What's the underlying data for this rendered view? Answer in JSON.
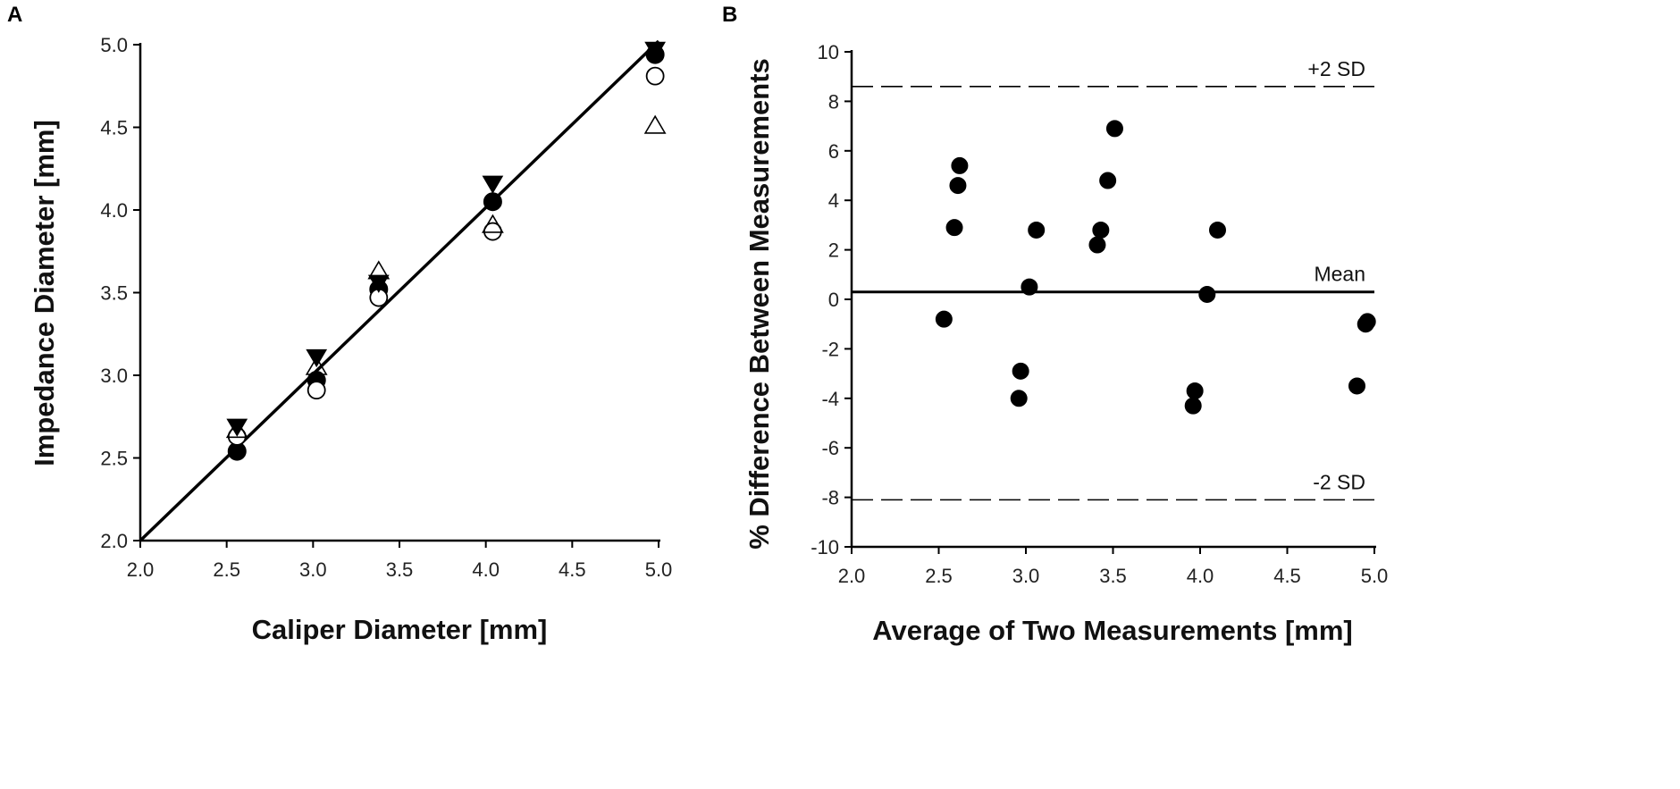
{
  "chart_data": [
    {
      "panel": "A",
      "type": "scatter",
      "xlabel": "Caliper Diameter [mm]",
      "ylabel": "Impedance Diameter [mm]",
      "xlim": [
        2.0,
        5.0
      ],
      "ylim": [
        2.0,
        5.0
      ],
      "xticks": [
        "2.0",
        "2.5",
        "3.0",
        "3.5",
        "4.0",
        "4.5",
        "5.0"
      ],
      "yticks": [
        "2.0",
        "2.5",
        "3.0",
        "3.5",
        "4.0",
        "4.5",
        "5.0"
      ],
      "grid": false,
      "identity_line": {
        "x": [
          2.0,
          5.0
        ],
        "y": [
          2.0,
          5.0
        ]
      },
      "series": [
        {
          "name": "filled circle",
          "marker": "circle-filled",
          "points": [
            [
              2.56,
              2.54
            ],
            [
              3.02,
              2.97
            ],
            [
              3.38,
              3.52
            ],
            [
              4.04,
              4.05
            ],
            [
              4.98,
              4.94
            ]
          ]
        },
        {
          "name": "open circle",
          "marker": "circle-open",
          "points": [
            [
              2.56,
              2.63
            ],
            [
              3.02,
              2.91
            ],
            [
              3.38,
              3.47
            ],
            [
              4.04,
              3.87
            ],
            [
              4.98,
              4.81
            ]
          ]
        },
        {
          "name": "filled triangle down",
          "marker": "triangle-down-filled",
          "points": [
            [
              2.56,
              2.69
            ],
            [
              3.02,
              3.11
            ],
            [
              3.38,
              3.56
            ],
            [
              4.04,
              4.16
            ],
            [
              4.98,
              4.97
            ]
          ]
        },
        {
          "name": "open triangle up",
          "marker": "triangle-up-open",
          "points": [
            [
              2.56,
              2.67
            ],
            [
              3.02,
              3.05
            ],
            [
              3.38,
              3.63
            ],
            [
              4.04,
              3.91
            ],
            [
              4.98,
              4.51
            ]
          ]
        }
      ]
    },
    {
      "panel": "B",
      "type": "scatter",
      "xlabel": "Average of Two Measurements [mm]",
      "ylabel": "% Difference Between Measurements",
      "xlim": [
        2.0,
        5.0
      ],
      "ylim": [
        -10,
        10
      ],
      "xticks": [
        "2.0",
        "2.5",
        "3.0",
        "3.5",
        "4.0",
        "4.5",
        "5.0"
      ],
      "yticks": [
        "-10",
        "-8",
        "-6",
        "-4",
        "-2",
        "0",
        "2",
        "4",
        "6",
        "8",
        "10"
      ],
      "grid": false,
      "reference_lines": [
        {
          "label": "+2 SD",
          "value": 8.6,
          "style": "dashed"
        },
        {
          "label": "Mean",
          "value": 0.3,
          "style": "solid"
        },
        {
          "label": "-2 SD",
          "value": -8.1,
          "style": "dashed"
        }
      ],
      "series": [
        {
          "name": "difference",
          "marker": "circle-filled",
          "points": [
            [
              2.53,
              -0.8
            ],
            [
              2.59,
              2.9
            ],
            [
              2.61,
              4.6
            ],
            [
              2.62,
              5.4
            ],
            [
              2.96,
              -4.0
            ],
            [
              2.97,
              -2.9
            ],
            [
              3.02,
              0.5
            ],
            [
              3.06,
              2.8
            ],
            [
              3.41,
              2.2
            ],
            [
              3.43,
              2.8
            ],
            [
              3.47,
              4.8
            ],
            [
              3.51,
              6.9
            ],
            [
              3.96,
              -4.3
            ],
            [
              3.97,
              -3.7
            ],
            [
              4.04,
              0.2
            ],
            [
              4.1,
              2.8
            ],
            [
              4.9,
              -3.5
            ],
            [
              4.95,
              -1.0
            ],
            [
              4.96,
              -0.9
            ]
          ]
        }
      ]
    }
  ],
  "panels": {
    "a": {
      "letter": "A"
    },
    "b": {
      "letter": "B"
    }
  }
}
